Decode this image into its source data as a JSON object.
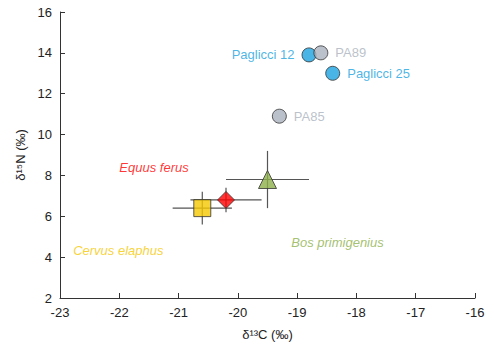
{
  "chart_data": {
    "type": "scatter",
    "xlabel": "δ¹³C (‰)",
    "ylabel": "δ¹⁵N (‰)",
    "xlim": [
      -23,
      -16
    ],
    "xticks": [
      -23,
      -22,
      -21,
      -20,
      -19,
      -18,
      -17,
      -16
    ],
    "ylim": [
      2,
      16
    ],
    "yticks": [
      2,
      4,
      6,
      8,
      10,
      12,
      14,
      16
    ],
    "grid": false,
    "series": [
      {
        "name": "Cervus elaphus",
        "color": "#f5c800",
        "marker": "square",
        "x": [
          -20.6
        ],
        "y": [
          6.4
        ],
        "xerr": [
          0.5
        ],
        "yerr": [
          0.8
        ]
      },
      {
        "name": "Equus ferus",
        "color": "#ff0000",
        "marker": "diamond",
        "x": [
          -20.2
        ],
        "y": [
          6.8
        ],
        "xerr": [
          0.6
        ],
        "yerr": [
          0.6
        ]
      },
      {
        "name": "Bos primigenius",
        "color": "#8db04a",
        "marker": "triangle",
        "x": [
          -19.5
        ],
        "y": [
          7.8
        ],
        "xerr": [
          0.7
        ],
        "yerr": [
          1.4
        ]
      },
      {
        "name": "Paglicci 12",
        "color": "#1aa3e0",
        "marker": "circle",
        "x": [
          -18.8
        ],
        "y": [
          13.9
        ]
      },
      {
        "name": "Paglicci 25",
        "color": "#1aa3e0",
        "marker": "circle",
        "x": [
          -18.4
        ],
        "y": [
          13.0
        ]
      },
      {
        "name": "PA89",
        "color": "#aab2bd",
        "marker": "circle",
        "x": [
          -18.6
        ],
        "y": [
          14.0
        ]
      },
      {
        "name": "PA85",
        "color": "#aab2bd",
        "marker": "circle",
        "x": [
          -19.3
        ],
        "y": [
          10.9
        ]
      }
    ]
  }
}
